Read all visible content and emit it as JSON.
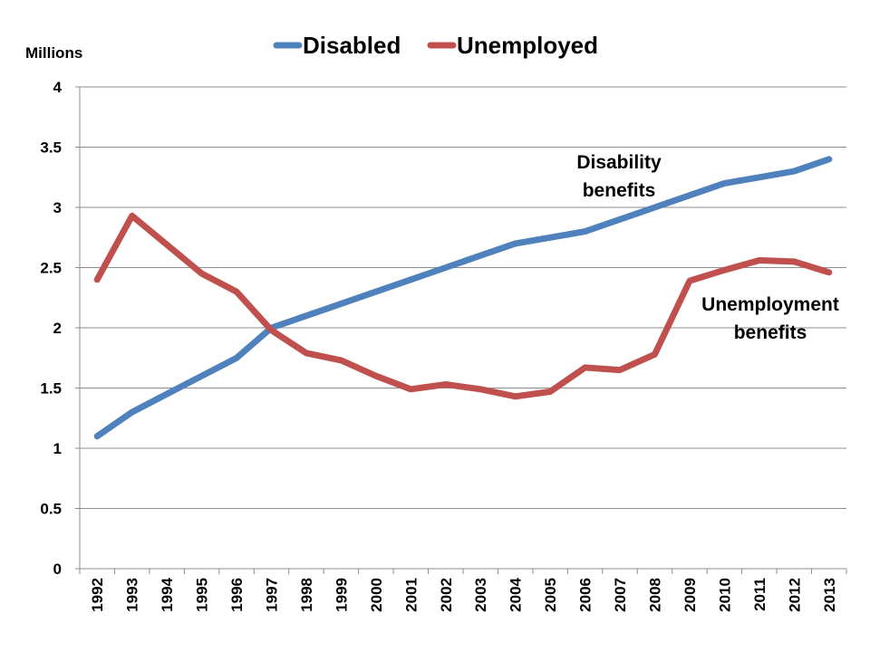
{
  "chart_data": {
    "type": "line",
    "y_unit": "Millions",
    "ylim": [
      0,
      4
    ],
    "yticks": [
      0,
      0.5,
      1,
      1.5,
      2,
      2.5,
      3,
      3.5,
      4
    ],
    "ytick_labels": [
      "0",
      "0.5",
      "1",
      "1.5",
      "2",
      "2.5",
      "3",
      "3.5",
      "4"
    ],
    "grid": true,
    "legend_position": "top-center",
    "categories": [
      "1992",
      "1993",
      "1994",
      "1995",
      "1996",
      "1997",
      "1998",
      "1999",
      "2000",
      "2001",
      "2002",
      "2003",
      "2004",
      "2005",
      "2006",
      "2007",
      "2008",
      "2009",
      "2010",
      "2011",
      "2012",
      "2013"
    ],
    "series": [
      {
        "name": "Disabled",
        "color": "#4f81bd",
        "values": [
          1.1,
          1.3,
          1.45,
          1.6,
          1.75,
          2.0,
          2.1,
          2.2,
          2.3,
          2.4,
          2.5,
          2.6,
          2.7,
          2.75,
          2.8,
          2.9,
          3.0,
          3.1,
          3.2,
          3.25,
          3.3,
          3.4
        ]
      },
      {
        "name": "Unemployed",
        "color": "#c0504d",
        "values": [
          2.4,
          2.93,
          2.69,
          2.45,
          2.3,
          1.98,
          1.79,
          1.73,
          1.6,
          1.49,
          1.53,
          1.49,
          1.43,
          1.47,
          1.67,
          1.65,
          1.78,
          2.39,
          2.48,
          2.56,
          2.55,
          2.46
        ]
      }
    ],
    "annotations": [
      {
        "series": "Disabled",
        "lines": [
          "Disability",
          "benefits"
        ]
      },
      {
        "series": "Unemployed",
        "lines": [
          "Unemployment",
          "benefits"
        ]
      }
    ]
  }
}
